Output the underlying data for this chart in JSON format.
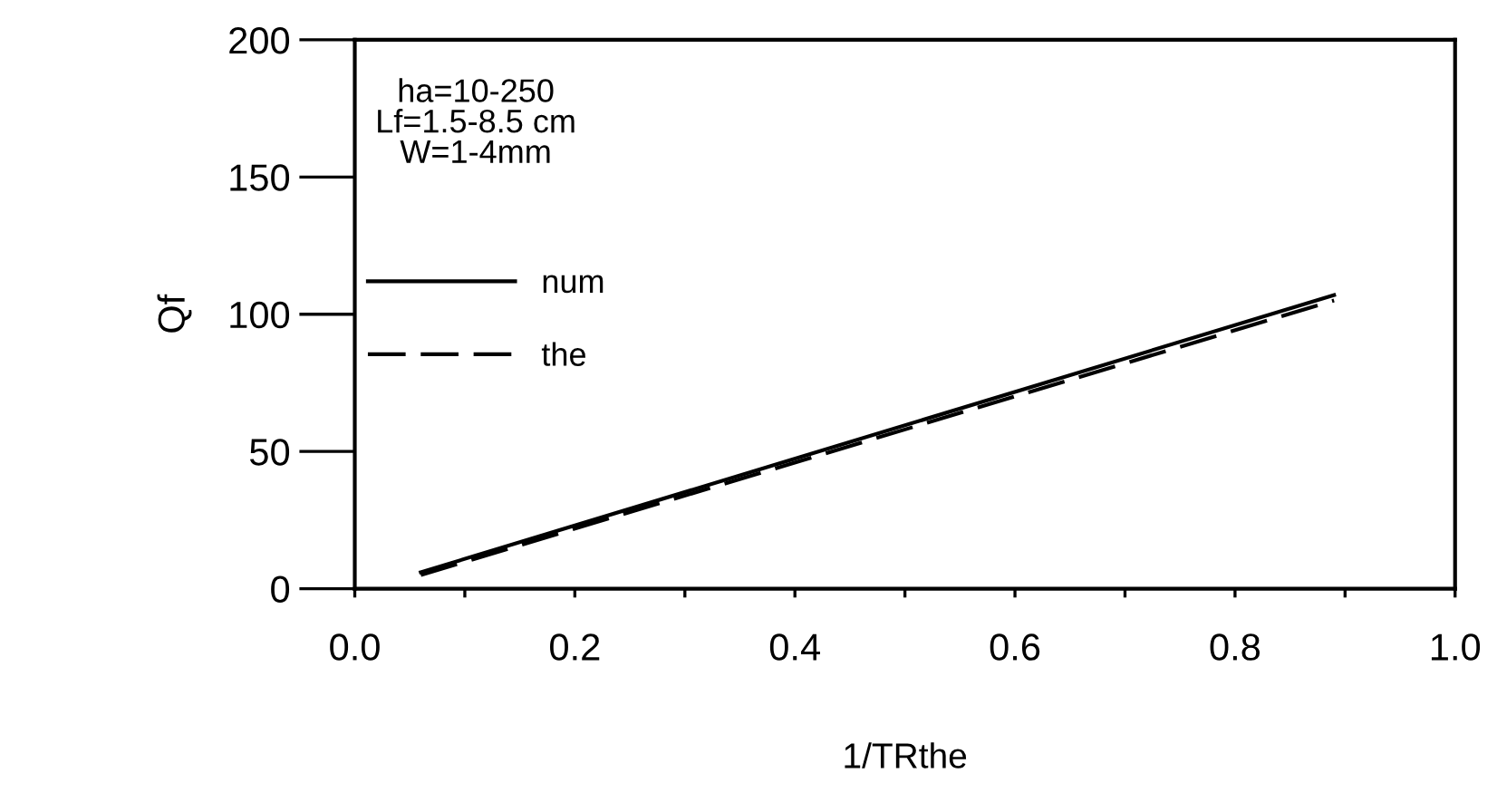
{
  "chart_data": {
    "type": "line",
    "xlabel": "1/TRthe",
    "ylabel": "Qf",
    "annotations": [
      "ha=10-250\nLf=1.5-8.5 cm\nW=1-4mm"
    ],
    "series": [
      {
        "name": "num",
        "color": "#000000",
        "line_style": "solid",
        "values": [
          6,
          107
        ]
      },
      {
        "name": "the",
        "color": "#000000",
        "line_style": "dashed",
        "values": [
          5,
          105
        ]
      }
    ],
    "x": [
      0.06,
      0.89
    ],
    "xlim": [
      0,
      1
    ],
    "xticks": [
      {
        "value": 0,
        "label": "0.0"
      },
      {
        "value": 0.1,
        "label": null
      },
      {
        "value": 0.2,
        "label": "0.2"
      },
      {
        "value": 0.3,
        "label": null
      },
      {
        "value": 0.4,
        "label": "0.4"
      },
      {
        "value": 0.5,
        "label": null
      },
      {
        "value": 0.6,
        "label": "0.6"
      },
      {
        "value": 0.7,
        "label": null
      },
      {
        "value": 0.8,
        "label": "0.8"
      },
      {
        "value": 0.9,
        "label": null
      },
      {
        "value": 1.0,
        "label": "1.0"
      }
    ],
    "ylim": [
      0,
      200
    ],
    "yticks": [
      0,
      50,
      100,
      150,
      200
    ],
    "grid": false,
    "legend": "left"
  }
}
